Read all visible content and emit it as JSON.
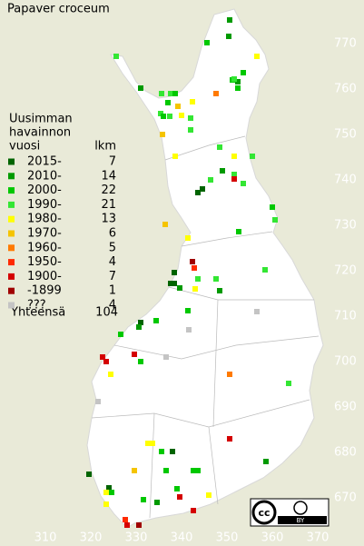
{
  "title": "Papaver croceum",
  "legend": {
    "header": [
      "Uusimman",
      "havainnon",
      "vuosi"
    ],
    "count_header": "lkm",
    "items": [
      {
        "label": "2015-",
        "color": "#006400",
        "count": 7
      },
      {
        "label": "2010-",
        "color": "#009a00",
        "count": 14
      },
      {
        "label": "2000-",
        "color": "#00c800",
        "count": 22
      },
      {
        "label": "1990-",
        "color": "#33e633",
        "count": 21
      },
      {
        "label": "1980-",
        "color": "#ffff00",
        "count": 13
      },
      {
        "label": "1970-",
        "color": "#f5c400",
        "count": 6
      },
      {
        "label": "1960-",
        "color": "#ff7a00",
        "count": 5
      },
      {
        "label": "1950-",
        "color": "#ff2a00",
        "count": 4
      },
      {
        "label": "1900-",
        "color": "#d40000",
        "count": 7
      },
      {
        "label": "-1899",
        "color": "#a00000",
        "count": 1
      },
      {
        "label": "???",
        "color": "#c4c4c4",
        "count": 4
      }
    ],
    "total_label": "Yhteensä",
    "total": 104
  },
  "xlim": [
    300,
    380
  ],
  "ylim": [
    660,
    780
  ],
  "xticks": [
    310,
    320,
    330,
    340,
    350,
    360,
    370
  ],
  "yticks": [
    670,
    680,
    690,
    700,
    710,
    720,
    730,
    740,
    750,
    760,
    770
  ],
  "license": {
    "icon": "cc",
    "label": "BY"
  },
  "points": [
    [
      350.6,
      775.2,
      1
    ],
    [
      345.6,
      770.2,
      2
    ],
    [
      350.4,
      771.6,
      1
    ],
    [
      325.6,
      767.2,
      3
    ],
    [
      356.6,
      767.2,
      4
    ],
    [
      353.6,
      763.6,
      2
    ],
    [
      351.2,
      762,
      2
    ],
    [
      352.4,
      761.6,
      1
    ],
    [
      351.6,
      762.2,
      3
    ],
    [
      352.4,
      760.2,
      2
    ],
    [
      347.6,
      759,
      6
    ],
    [
      331,
      760.2,
      1
    ],
    [
      335.6,
      759,
      3
    ],
    [
      337.6,
      759,
      3
    ],
    [
      338.6,
      759,
      2
    ],
    [
      342.4,
      757.2,
      4
    ],
    [
      337,
      757,
      2
    ],
    [
      339.2,
      756.2,
      5
    ],
    [
      335.4,
      754.6,
      3
    ],
    [
      336,
      754,
      2
    ],
    [
      337.4,
      754,
      3
    ],
    [
      340,
      754.2,
      4
    ],
    [
      342,
      753.6,
      3
    ],
    [
      335.8,
      750,
      5
    ],
    [
      342,
      751,
      3
    ],
    [
      348.4,
      747.2,
      3
    ],
    [
      351.6,
      745.2,
      4
    ],
    [
      355.6,
      745.2,
      3
    ],
    [
      338.6,
      745.2,
      4
    ],
    [
      349,
      742,
      1
    ],
    [
      351.6,
      741.2,
      3
    ],
    [
      351.6,
      740.2,
      8
    ],
    [
      346.4,
      740,
      3
    ],
    [
      344.6,
      738,
      0
    ],
    [
      343.6,
      737.2,
      0
    ],
    [
      353.6,
      739.2,
      3
    ],
    [
      360,
      734,
      2
    ],
    [
      360.6,
      731.2,
      3
    ],
    [
      336.4,
      730.2,
      5
    ],
    [
      352.6,
      728.6,
      2
    ],
    [
      341.4,
      727.2,
      4
    ],
    [
      342.4,
      722,
      9
    ],
    [
      342.8,
      720.6,
      7
    ],
    [
      338.4,
      719.6,
      0
    ],
    [
      343.6,
      718.2,
      3
    ],
    [
      347.6,
      718.2,
      3
    ],
    [
      358.4,
      720.2,
      3
    ],
    [
      337.6,
      717.2,
      0
    ],
    [
      338.4,
      717.2,
      0
    ],
    [
      339.6,
      716.2,
      1
    ],
    [
      343,
      716,
      4
    ],
    [
      348.4,
      715.6,
      1
    ],
    [
      341.4,
      711.2,
      2
    ],
    [
      356.6,
      711,
      10
    ],
    [
      334.4,
      709,
      2
    ],
    [
      331,
      708.6,
      0
    ],
    [
      330.6,
      707.6,
      1
    ],
    [
      341.6,
      707,
      10
    ],
    [
      326.6,
      706,
      2
    ],
    [
      336.6,
      701,
      10
    ],
    [
      329.6,
      701.6,
      8
    ],
    [
      322.6,
      701,
      8
    ],
    [
      323.4,
      700,
      8
    ],
    [
      331,
      700,
      2
    ],
    [
      324.4,
      697.2,
      4
    ],
    [
      321.6,
      691.2,
      10
    ],
    [
      350.6,
      697.2,
      6
    ],
    [
      363.6,
      695.2,
      3
    ],
    [
      350.6,
      683,
      8
    ],
    [
      332.6,
      682,
      4
    ],
    [
      333.6,
      682,
      4
    ],
    [
      335.6,
      680.2,
      2
    ],
    [
      338,
      680.2,
      0
    ],
    [
      358.6,
      678,
      1
    ],
    [
      336.6,
      676,
      2
    ],
    [
      342.6,
      676,
      2
    ],
    [
      343.6,
      676,
      2
    ],
    [
      329.6,
      676,
      5
    ],
    [
      319.6,
      675.2,
      0
    ],
    [
      324,
      672.2,
      0
    ],
    [
      323.4,
      671.2,
      4
    ],
    [
      324.6,
      671.2,
      2
    ],
    [
      331.6,
      669.6,
      2
    ],
    [
      339,
      672,
      2
    ],
    [
      339.6,
      670.2,
      8
    ],
    [
      334.6,
      669,
      1
    ],
    [
      330.6,
      664,
      9
    ],
    [
      328,
      664,
      8
    ],
    [
      327.6,
      665.2,
      7
    ],
    [
      342.6,
      667.2,
      8
    ],
    [
      346,
      670.6,
      4
    ],
    [
      323.4,
      668.6,
      4
    ]
  ]
}
